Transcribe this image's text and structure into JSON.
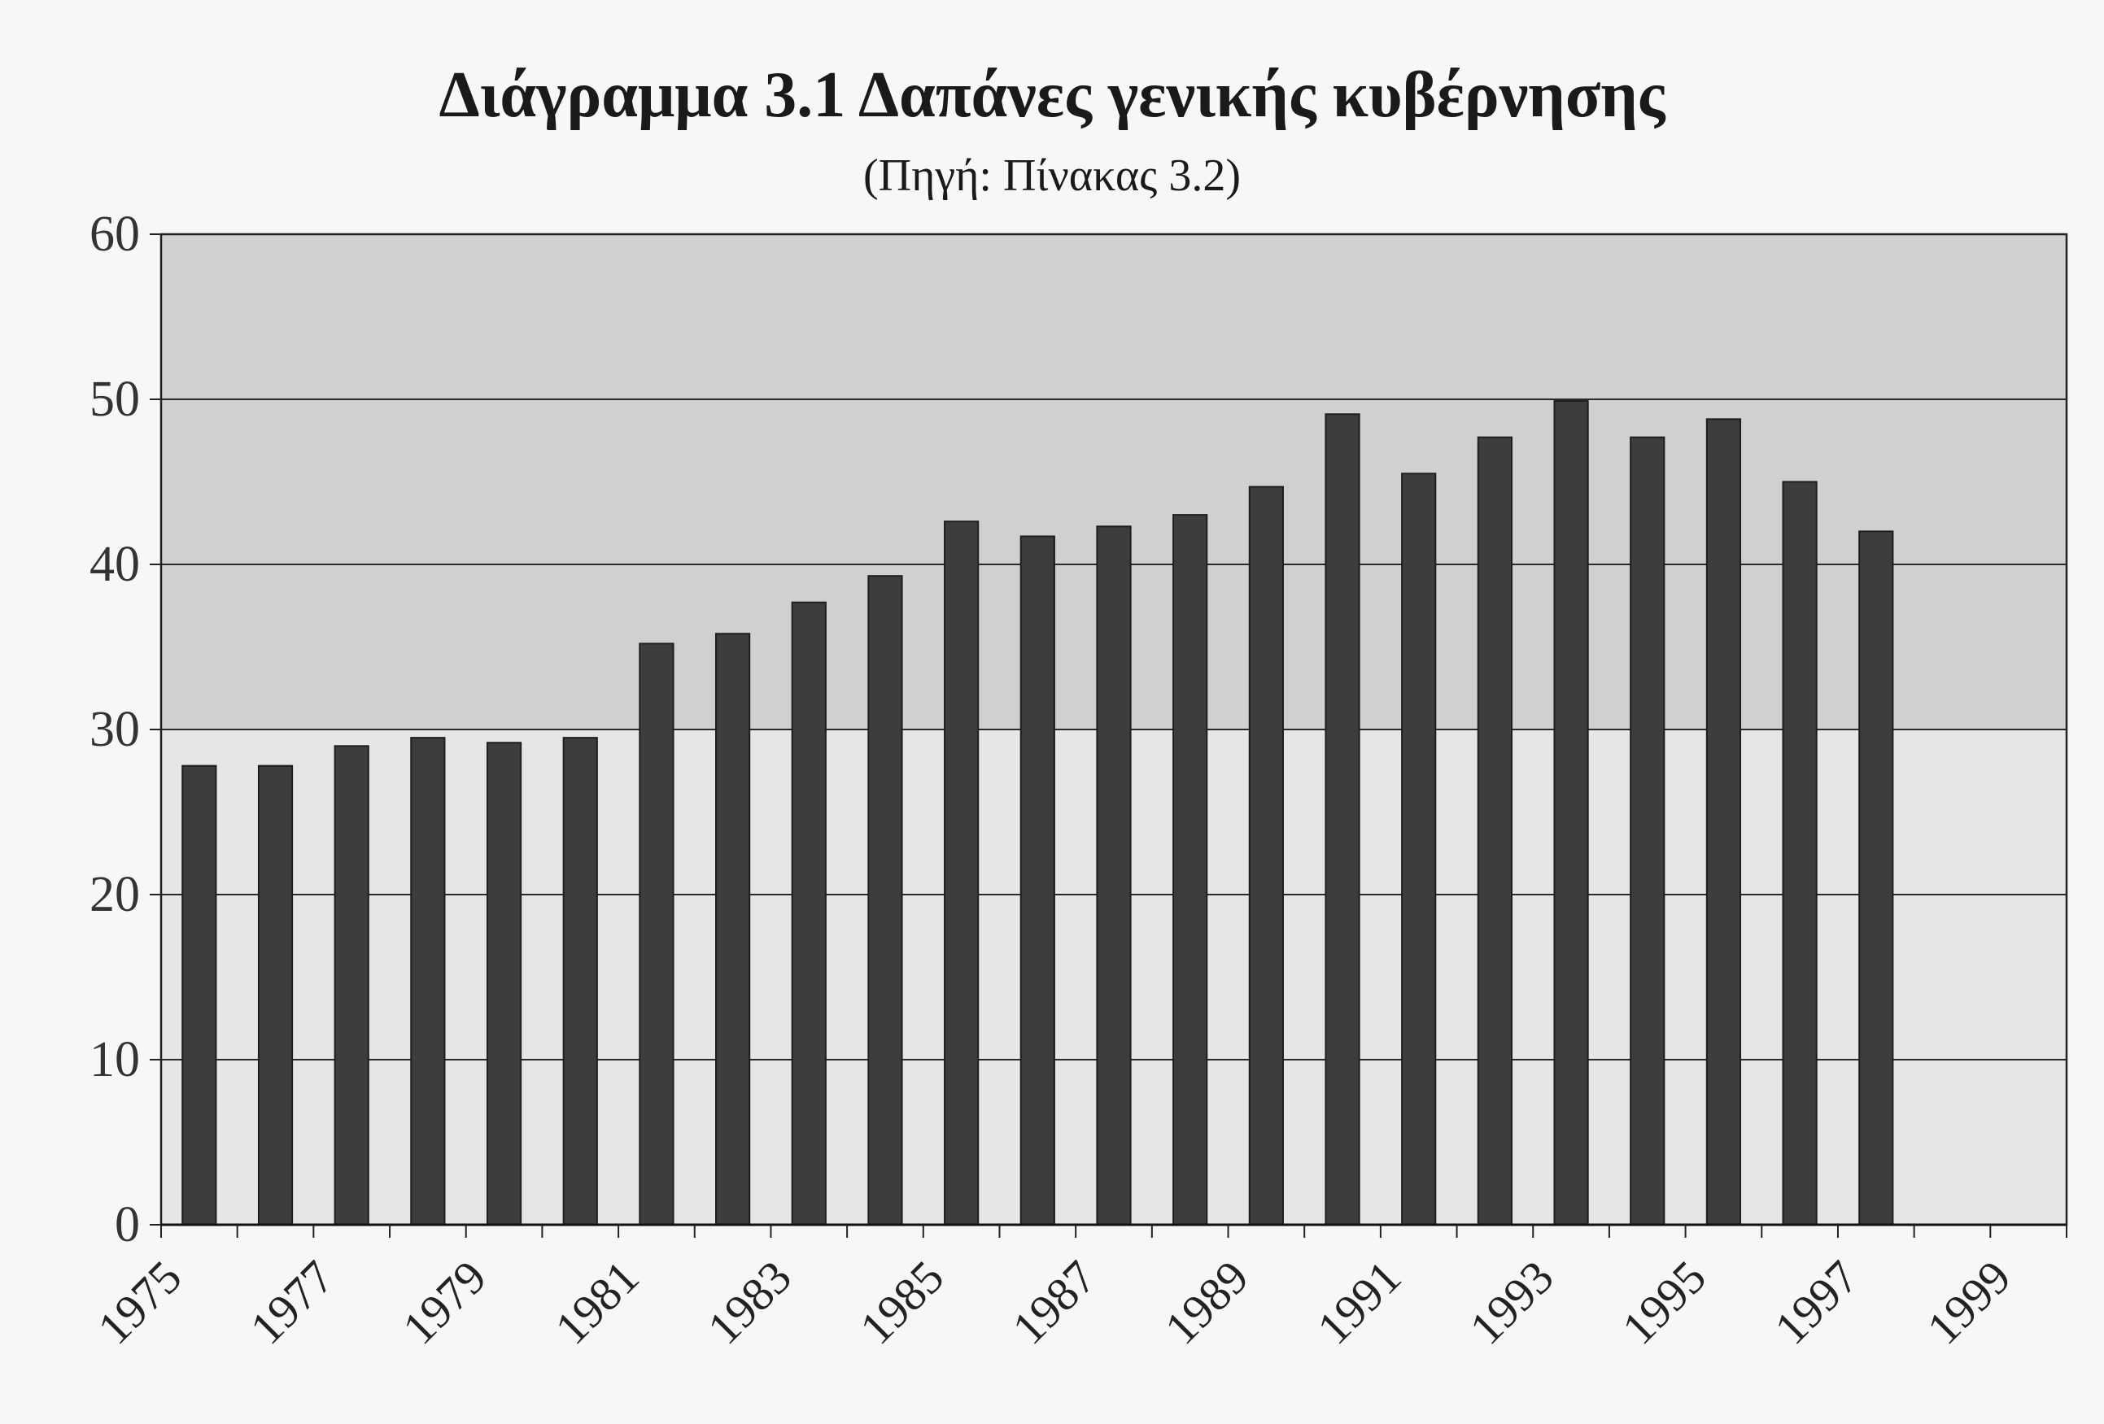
{
  "chart_data": {
    "type": "bar",
    "title": "Διάγραμμα 3.1 Δαπάνες γενικής κυβέρνησης",
    "subtitle": "(Πηγή: Πίνακας 3.2)",
    "categories": [
      "1975",
      "1976",
      "1977",
      "1978",
      "1979",
      "1980",
      "1981",
      "1982",
      "1983",
      "1984",
      "1985",
      "1986",
      "1987",
      "1988",
      "1989",
      "1990",
      "1991",
      "1992",
      "1993",
      "1994",
      "1995",
      "1996",
      "1997",
      "1998",
      "1999"
    ],
    "x_tick_labels": [
      "1975",
      "1977",
      "1979",
      "1981",
      "1983",
      "1985",
      "1987",
      "1989",
      "1991",
      "1993",
      "1995",
      "1997",
      "1999"
    ],
    "values": [
      27.8,
      27.8,
      29.0,
      29.5,
      29.2,
      29.5,
      35.2,
      35.8,
      37.7,
      39.3,
      42.6,
      41.7,
      42.3,
      43.0,
      44.7,
      49.1,
      45.5,
      47.7,
      49.9,
      47.7,
      48.8,
      45.0,
      42.0,
      null,
      null
    ],
    "ylim": [
      0,
      60
    ],
    "yticks": [
      0,
      10,
      20,
      30,
      40,
      50,
      60
    ],
    "grid": true,
    "legend": "none",
    "colors": {
      "bar": "#3d3d3d",
      "plot_background_upper": "#d0d0d0",
      "plot_background_lower": "#e6e6e6",
      "gridline": "#2a2a2a"
    }
  }
}
